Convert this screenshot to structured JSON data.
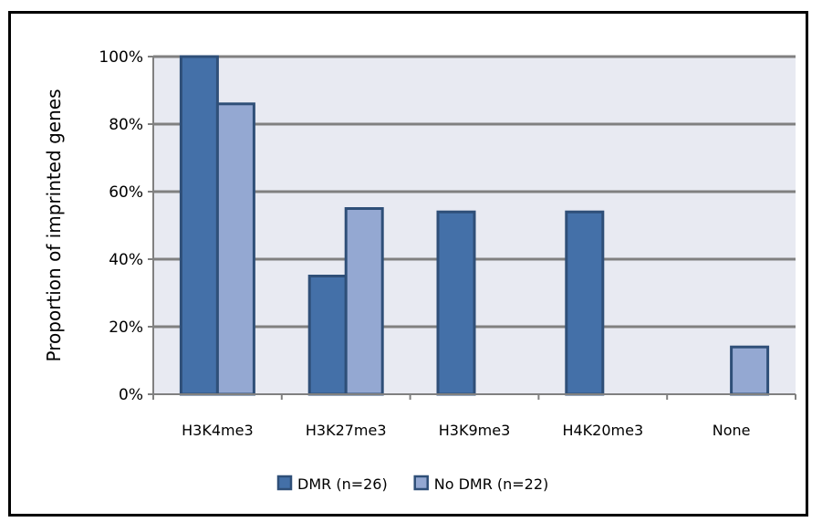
{
  "chart_data": {
    "type": "bar",
    "categories": [
      "H3K4me3",
      "H3K27me3",
      "H3K9me3",
      "H4K20me3",
      "None"
    ],
    "series": [
      {
        "name": "DMR (n=26)",
        "values": [
          100,
          35,
          54,
          54,
          0
        ],
        "color": "#4470A8"
      },
      {
        "name": "No DMR (n=22)",
        "values": [
          86,
          55,
          0,
          0,
          14
        ],
        "color": "#94A8D2"
      }
    ],
    "ylabel": "Proportion of imprinted genes",
    "xlabel": "",
    "ylim": [
      0,
      100
    ],
    "yticks": [
      "0%",
      "20%",
      "40%",
      "60%",
      "80%",
      "100%"
    ],
    "grid": true,
    "legend_position": "bottom",
    "plot_background": "#E8EAF2",
    "border_color": "#2F4F78"
  }
}
